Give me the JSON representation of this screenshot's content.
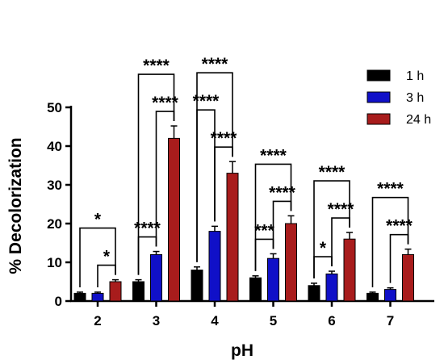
{
  "chart_data": {
    "type": "bar",
    "xlabel": "pH",
    "ylabel": "% Decolorization",
    "ylim": [
      0,
      50
    ],
    "yticks": [
      0,
      10,
      20,
      30,
      40,
      50
    ],
    "categories": [
      "2",
      "3",
      "4",
      "5",
      "6",
      "7"
    ],
    "legend_position": "top-right",
    "series": [
      {
        "name": "1 h",
        "color": "#000000",
        "values": [
          2,
          5,
          8,
          6,
          4,
          2
        ],
        "errors": [
          0.3,
          0.5,
          0.8,
          0.5,
          0.6,
          0.3
        ]
      },
      {
        "name": "3 h",
        "color": "#1010c8",
        "values": [
          2,
          12,
          18,
          11,
          7,
          3
        ],
        "errors": [
          0.3,
          0.8,
          1.3,
          1.2,
          0.7,
          0.4
        ]
      },
      {
        "name": "24 h",
        "color": "#a81c1c",
        "values": [
          5,
          42,
          33,
          20,
          16,
          12
        ],
        "errors": [
          0.5,
          3.2,
          3.0,
          2.0,
          1.7,
          1.4
        ]
      }
    ],
    "significance": [
      {
        "category": "2",
        "from": "1 h",
        "to": "24 h",
        "label": "*"
      },
      {
        "category": "2",
        "from": "3 h",
        "to": "24 h",
        "label": "*"
      },
      {
        "category": "3",
        "from": "1 h",
        "to": "3 h",
        "label": "****"
      },
      {
        "category": "3",
        "from": "3 h",
        "to": "24 h",
        "label": "****"
      },
      {
        "category": "3",
        "from": "1 h",
        "to": "24 h",
        "label": "****"
      },
      {
        "category": "4",
        "from": "3 h",
        "to": "24 h",
        "label": "****"
      },
      {
        "category": "4",
        "from": "1 h",
        "to": "24 h",
        "label": "****"
      },
      {
        "category": "4",
        "from": "1 h",
        "to": "3 h",
        "label": "****"
      },
      {
        "category": "5",
        "from": "1 h",
        "to": "3 h",
        "label": "***"
      },
      {
        "category": "5",
        "from": "3 h",
        "to": "24 h",
        "label": "****"
      },
      {
        "category": "5",
        "from": "1 h",
        "to": "24 h",
        "label": "****"
      },
      {
        "category": "6",
        "from": "1 h",
        "to": "3 h",
        "label": "*"
      },
      {
        "category": "6",
        "from": "3 h",
        "to": "24 h",
        "label": "****"
      },
      {
        "category": "6",
        "from": "1 h",
        "to": "24 h",
        "label": "****"
      },
      {
        "category": "7",
        "from": "3 h",
        "to": "24 h",
        "label": "****"
      },
      {
        "category": "7",
        "from": "1 h",
        "to": "24 h",
        "label": "****"
      }
    ]
  }
}
